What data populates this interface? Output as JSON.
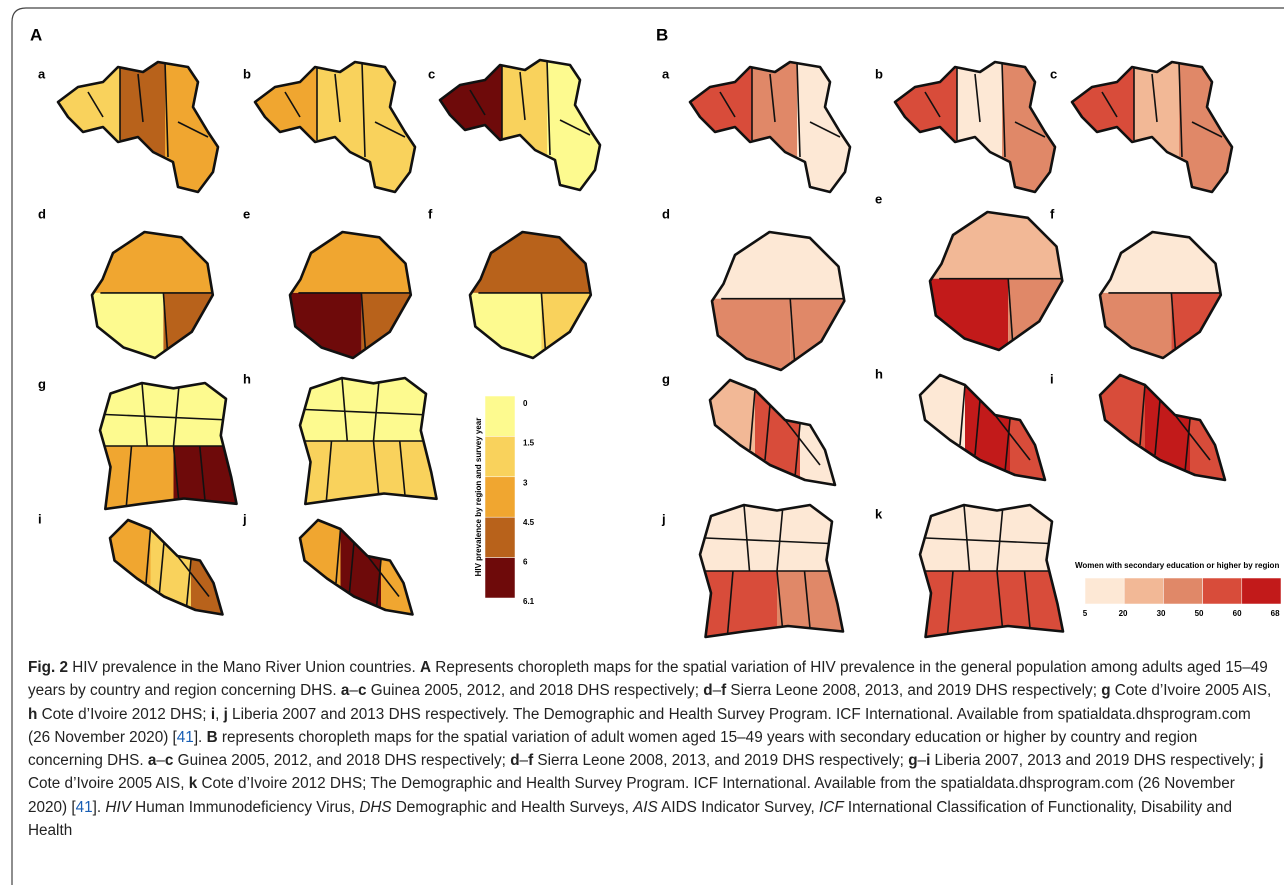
{
  "panels": [
    {
      "label": "A",
      "maps": [
        {
          "label": "a"
        },
        {
          "label": "b"
        },
        {
          "label": "c"
        },
        {
          "label": "d"
        },
        {
          "label": "e"
        },
        {
          "label": "f"
        },
        {
          "label": "g"
        },
        {
          "label": "h"
        },
        {
          "label": "i"
        },
        {
          "label": "j"
        }
      ],
      "legend": {
        "title": "HIV prevalence by region and survey year",
        "ticks": [
          0,
          1.5,
          3,
          4.5,
          6,
          6.1
        ]
      }
    },
    {
      "label": "B",
      "maps": [
        {
          "label": "a"
        },
        {
          "label": "b"
        },
        {
          "label": "c"
        },
        {
          "label": "d"
        },
        {
          "label": "e"
        },
        {
          "label": "f"
        },
        {
          "label": "g"
        },
        {
          "label": "h"
        },
        {
          "label": "i"
        },
        {
          "label": "j"
        },
        {
          "label": "k"
        }
      ],
      "legend": {
        "title": "Women with secondary education or higher  by region",
        "ticks": [
          5,
          20,
          30,
          50,
          60,
          68
        ]
      }
    }
  ],
  "caption": [
    {
      "text": "Fig. 2",
      "style": "bold"
    },
    {
      "text": "  HIV prevalence in the Mano River Union countries. "
    },
    {
      "text": "A",
      "style": "bold"
    },
    {
      "text": " Represents choropleth maps for the spatial variation of HIV prevalence in the general population among adults aged 15–49 years by country and region concerning DHS. "
    },
    {
      "text": "a",
      "style": "bold"
    },
    {
      "text": "–"
    },
    {
      "text": "c",
      "style": "bold"
    },
    {
      "text": " Guinea 2005, 2012, and 2018 DHS respectively; "
    },
    {
      "text": "d",
      "style": "bold"
    },
    {
      "text": "–"
    },
    {
      "text": "f",
      "style": "bold"
    },
    {
      "text": " Sierra Leone 2008, 2013, and 2019 DHS respectively; "
    },
    {
      "text": "g",
      "style": "bold"
    },
    {
      "text": " Cote d’Ivoire 2005 AIS, "
    },
    {
      "text": "h",
      "style": "bold"
    },
    {
      "text": " Cote d’Ivoire 2012 DHS; "
    },
    {
      "text": "i",
      "style": "bold"
    },
    {
      "text": ", "
    },
    {
      "text": "j",
      "style": "bold"
    },
    {
      "text": " Liberia 2007 and 2013 DHS respectively. The Demographic and Health Survey Program. ICF International. Available from spatialdata.dhsprogram.com (26 November 2020) ["
    },
    {
      "text": "41",
      "style": "link"
    },
    {
      "text": "]. "
    },
    {
      "text": "B",
      "style": "bold"
    },
    {
      "text": " represents choropleth maps for the spatial variation of adult women aged 15–49 years with secondary education or higher by country and region concerning DHS. "
    },
    {
      "text": "a",
      "style": "bold"
    },
    {
      "text": "–"
    },
    {
      "text": "c",
      "style": "bold"
    },
    {
      "text": " Guinea 2005, 2012, and 2018 DHS respectively; "
    },
    {
      "text": "d",
      "style": "bold"
    },
    {
      "text": "–"
    },
    {
      "text": "f",
      "style": "bold"
    },
    {
      "text": " Sierra Leone 2008, 2013, and 2019 DHS respectively; "
    },
    {
      "text": "g",
      "style": "bold"
    },
    {
      "text": "–"
    },
    {
      "text": "i",
      "style": "bold"
    },
    {
      "text": " Liberia 2007, 2013 and 2019 DHS respectively; "
    },
    {
      "text": "j",
      "style": "bold"
    },
    {
      "text": " Cote d’Ivoire 2005 AIS, "
    },
    {
      "text": "k",
      "style": "bold"
    },
    {
      "text": " Cote d’Ivoire 2012 DHS; The Demographic and Health Survey Program. ICF International. Available from the spatialdata.dhsprogram.com (26 November 2020) ["
    },
    {
      "text": "41",
      "style": "link"
    },
    {
      "text": "]. "
    },
    {
      "text": "HIV",
      "style": "italic"
    },
    {
      "text": " Human Immunodeficiency Virus, "
    },
    {
      "text": "DHS",
      "style": "italic"
    },
    {
      "text": " Demographic and Health Surveys, "
    },
    {
      "text": "AIS",
      "style": "italic"
    },
    {
      "text": " AIDS Indicator Survey, "
    },
    {
      "text": "ICF",
      "style": "italic"
    },
    {
      "text": " International Classification of Functionality, Disability and Health"
    }
  ]
}
